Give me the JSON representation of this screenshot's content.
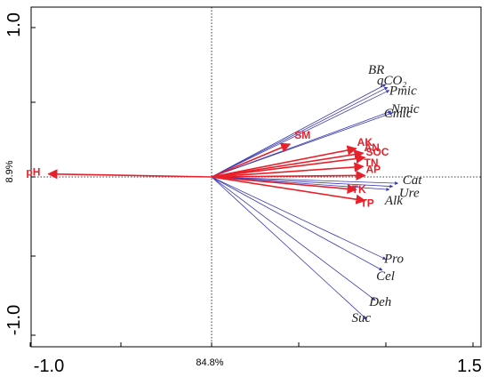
{
  "chart_data": {
    "type": "scatter",
    "subtype": "rda-biplot",
    "xlim": [
      -1.0,
      1.5
    ],
    "ylim": [
      -1.0,
      1.0
    ],
    "x_ticks": [
      -1.0,
      1.5
    ],
    "y_ticks": [
      1.0,
      -1.0
    ],
    "x_tick_labels": [
      "-1.0",
      "1.5"
    ],
    "y_tick_labels": [
      "1.0",
      "-1.0"
    ],
    "xlabel": "84.8%",
    "ylabel": "8.9%",
    "colors": {
      "response": "#3b3bb0",
      "explanatory": "#e8202a",
      "axis": "#000000"
    },
    "response_vectors": [
      {
        "label": "BR",
        "x": 1.0,
        "y": 0.62
      },
      {
        "label": "qCO₂",
        "x": 1.01,
        "y": 0.6
      },
      {
        "label": "Pmic",
        "x": 1.02,
        "y": 0.58
      },
      {
        "label": "Nmic",
        "x": 1.03,
        "y": 0.44
      },
      {
        "label": "Cmic",
        "x": 1.04,
        "y": 0.43
      },
      {
        "label": "Cat",
        "x": 1.07,
        "y": -0.04
      },
      {
        "label": "Ure",
        "x": 1.04,
        "y": -0.06
      },
      {
        "label": "Alk",
        "x": 1.02,
        "y": -0.08
      },
      {
        "label": "Pro",
        "x": 1.0,
        "y": -0.52
      },
      {
        "label": "Cel",
        "x": 0.98,
        "y": -0.59
      },
      {
        "label": "Deh",
        "x": 0.94,
        "y": -0.78
      },
      {
        "label": "Suc",
        "x": 0.89,
        "y": -0.9
      }
    ],
    "explanatory_vectors": [
      {
        "label": "pH",
        "x": -0.9,
        "y": 0.02
      },
      {
        "label": "SM",
        "x": 0.45,
        "y": 0.22
      },
      {
        "label": "AK",
        "x": 0.83,
        "y": 0.19
      },
      {
        "label": "AN",
        "x": 0.87,
        "y": 0.16
      },
      {
        "label": "SOC",
        "x": 0.88,
        "y": 0.13
      },
      {
        "label": "TN",
        "x": 0.87,
        "y": 0.07
      },
      {
        "label": "AP",
        "x": 0.88,
        "y": 0.01
      },
      {
        "label": "TK",
        "x": 0.83,
        "y": -0.08
      },
      {
        "label": "TP",
        "x": 0.88,
        "y": -0.15
      }
    ]
  }
}
